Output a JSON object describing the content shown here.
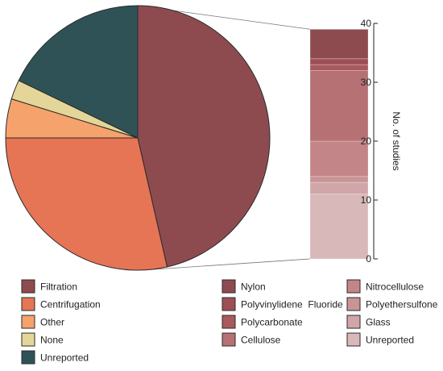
{
  "colors": {
    "edge": "#2b2b2b",
    "axis": "#222222"
  },
  "chart_data": [
    {
      "type": "pie",
      "title": "",
      "slices": [
        {
          "name": "Filtration",
          "value": 39,
          "color": "#8d4b50"
        },
        {
          "name": "Centrifugation",
          "value": 24,
          "color": "#e67556"
        },
        {
          "name": "Other",
          "value": 4,
          "color": "#f5a26c"
        },
        {
          "name": "None",
          "value": 2,
          "color": "#e4d698"
        },
        {
          "name": "Unreported",
          "value": 15,
          "color": "#2f5257"
        }
      ],
      "legend_position": "bottom-left"
    },
    {
      "type": "bar",
      "stacked": true,
      "ylabel": "No. of studies",
      "ylim": [
        0,
        40
      ],
      "yticks": [
        "0",
        "10",
        "20",
        "30",
        "40"
      ],
      "ytick_values": [
        0,
        10,
        20,
        30,
        40
      ],
      "series": [
        {
          "name": "Unreported",
          "values": [
            11
          ],
          "color": "#d9b8ba"
        },
        {
          "name": "Glass",
          "values": [
            2
          ],
          "color": "#d1a6a9"
        },
        {
          "name": "Polyethersulfone",
          "values": [
            1
          ],
          "color": "#c99496"
        },
        {
          "name": "Nitrocellulose",
          "values": [
            6
          ],
          "color": "#c48588"
        },
        {
          "name": "Cellulose",
          "values": [
            12
          ],
          "color": "#b57174"
        },
        {
          "name": "Polycarbonate",
          "values": [
            1
          ],
          "color": "#a9595e"
        },
        {
          "name": "Polyvinylidene  Fluoride",
          "values": [
            1
          ],
          "color": "#9c4f54"
        },
        {
          "name": "Nylon",
          "values": [
            5
          ],
          "color": "#8d4b50"
        }
      ],
      "legend_position": "bottom-right"
    }
  ]
}
